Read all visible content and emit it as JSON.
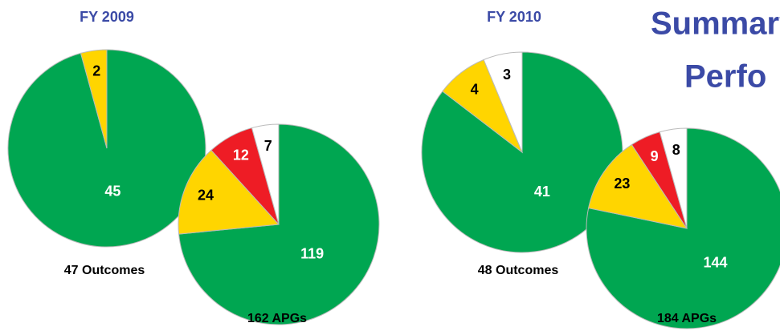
{
  "header": {
    "title_lines": [
      "Summary",
      "Perfo"
    ]
  },
  "groups": [
    "FY 2009",
    "FY 2010"
  ],
  "chart_data": [
    {
      "type": "pie",
      "title": "47 Outcomes",
      "values": [
        45,
        2
      ],
      "colors": [
        "#00a651",
        "#ffd500"
      ]
    },
    {
      "type": "pie",
      "title": "162 APGs",
      "values": [
        119,
        24,
        12,
        7
      ],
      "colors": [
        "#00a651",
        "#ffd500",
        "#ee1c25",
        "#ffffff"
      ]
    },
    {
      "type": "pie",
      "title": "48 Outcomes",
      "values": [
        41,
        4,
        3
      ],
      "colors": [
        "#00a651",
        "#ffd500",
        "#ffffff"
      ]
    },
    {
      "type": "pie",
      "title": "184 APGs",
      "values": [
        144,
        23,
        9,
        8
      ],
      "colors": [
        "#00a651",
        "#ffd500",
        "#ee1c25",
        "#ffffff"
      ]
    }
  ]
}
